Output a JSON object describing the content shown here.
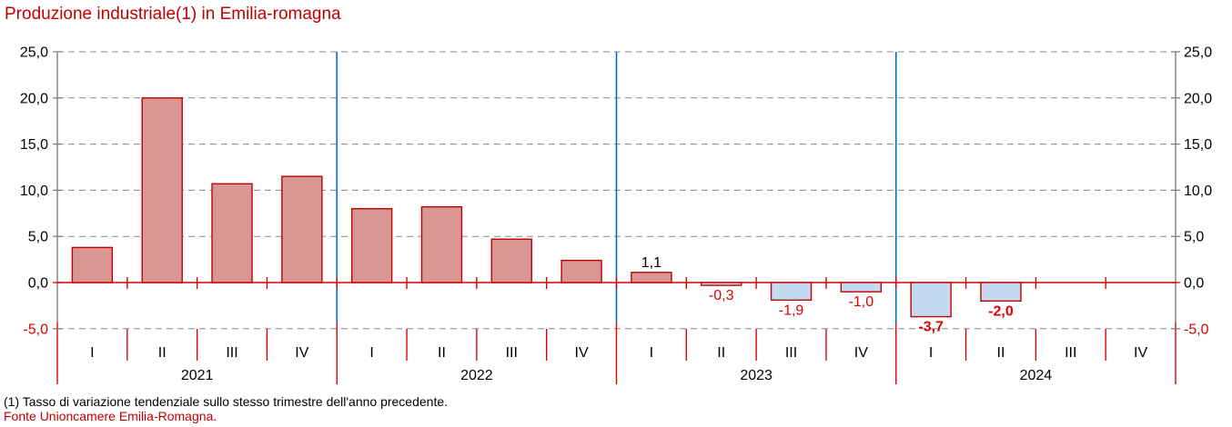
{
  "title": "Produzione industriale(1) in Emilia-romagna",
  "footnote": "(1) Tasso di variazione tendenziale sullo stesso trimestre dell'anno precedente.",
  "source": "Fonte Unioncamere Emilia-Romagna.",
  "colors": {
    "title": "#c00000",
    "source": "#c00000",
    "positive_fill": "#d99694",
    "negative_fill": "#c5d9f1",
    "bar_border": "#c00000",
    "axis_gray": "#808080",
    "grid": "#888888",
    "red_axis": "#e00000",
    "separator_blue": "#0070c0",
    "positive_label": "#000000",
    "negative_label": "#e00000",
    "tick_label": "#000000",
    "negative_tick_label": "#e00000"
  },
  "chart_data": {
    "type": "bar",
    "title": "Produzione industriale(1) in Emilia-romagna",
    "ylabel": "",
    "xlabel": "",
    "ylim": [
      -5,
      25
    ],
    "grid": true,
    "yticks": [
      25,
      20,
      15,
      10,
      5,
      0,
      -5
    ],
    "ytick_labels": [
      "25,0",
      "20,0",
      "15,0",
      "10,0",
      "5,0",
      "0,0",
      "-5,0"
    ],
    "groups": [
      {
        "year": "2021",
        "quarters": [
          "I",
          "II",
          "III",
          "IV"
        ],
        "values": [
          3.8,
          20.0,
          10.7,
          11.5
        ],
        "labels": [
          null,
          null,
          null,
          null
        ],
        "bold_labels": false
      },
      {
        "year": "2022",
        "quarters": [
          "I",
          "II",
          "III",
          "IV"
        ],
        "values": [
          8.0,
          8.2,
          4.7,
          2.4
        ],
        "labels": [
          null,
          null,
          null,
          null
        ],
        "bold_labels": false
      },
      {
        "year": "2023",
        "quarters": [
          "I",
          "II",
          "III",
          "IV"
        ],
        "values": [
          1.1,
          -0.3,
          -1.9,
          -1.0
        ],
        "labels": [
          "1,1",
          "-0,3",
          "-1,9",
          "-1,0"
        ],
        "bold_labels": false
      },
      {
        "year": "2024",
        "quarters": [
          "I",
          "II",
          "III",
          "IV"
        ],
        "values": [
          -3.7,
          -2.0,
          null,
          null
        ],
        "labels": [
          "-3,7",
          "-2,0",
          null,
          null
        ],
        "bold_labels": true
      }
    ]
  }
}
